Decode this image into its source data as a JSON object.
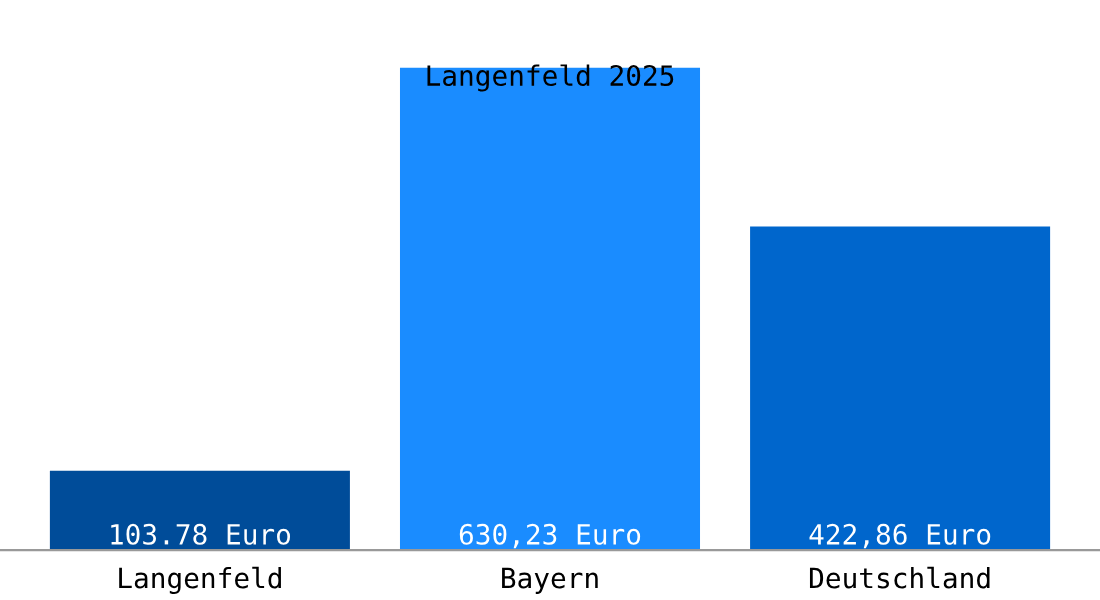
{
  "chart_data": {
    "type": "bar",
    "title": "Langenfeld 2025",
    "categories": [
      "Langenfeld",
      "Bayern",
      "Deutschland"
    ],
    "values": [
      103.78,
      630.23,
      422.86
    ],
    "colors": [
      "#004c99",
      "#1a8cff",
      "#0066cc"
    ],
    "value_labels": [
      "103.78 Euro",
      "630,23 Euro",
      "422,86 Euro"
    ],
    "grid": false
  }
}
